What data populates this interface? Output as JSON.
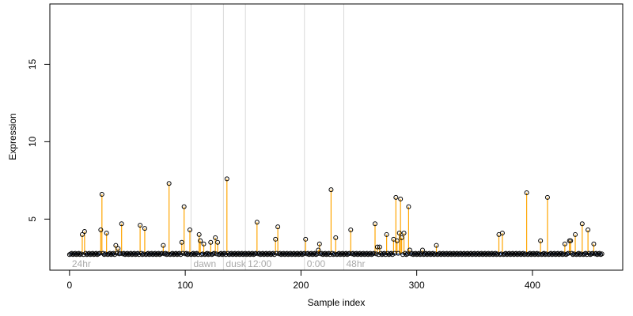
{
  "chart_data": {
    "type": "scatter",
    "title": "",
    "xlabel": "Sample index",
    "ylabel": "Expression",
    "xlim": [
      -17,
      478
    ],
    "ylim": [
      1.7,
      18.9
    ],
    "x_ticks": [
      0,
      100,
      200,
      300,
      400
    ],
    "y_ticks": [
      5,
      10,
      15
    ],
    "grid": false,
    "n_samples": 461,
    "baseline": 2.75,
    "baseline_color": "#6495ED",
    "stem_color": "#FFA500",
    "point_stroke": "#000000",
    "vertical_marker_color": "#d9d9d9",
    "vertical_markers": [
      {
        "x": 0,
        "label": "24hr"
      },
      {
        "x": 105,
        "label": "dawn"
      },
      {
        "x": 133,
        "label": "dusk"
      },
      {
        "x": 152,
        "label": "12:00"
      },
      {
        "x": 203,
        "label": "0:00"
      },
      {
        "x": 237,
        "label": "48hr"
      }
    ],
    "peaks": [
      {
        "x": 11,
        "y": 4.0
      },
      {
        "x": 13,
        "y": 4.2
      },
      {
        "x": 27,
        "y": 4.3
      },
      {
        "x": 28,
        "y": 6.6
      },
      {
        "x": 32,
        "y": 4.1
      },
      {
        "x": 40,
        "y": 3.3
      },
      {
        "x": 42,
        "y": 3.1
      },
      {
        "x": 45,
        "y": 4.7
      },
      {
        "x": 61,
        "y": 4.6
      },
      {
        "x": 65,
        "y": 4.4
      },
      {
        "x": 81,
        "y": 3.3
      },
      {
        "x": 86,
        "y": 7.3
      },
      {
        "x": 97,
        "y": 3.5
      },
      {
        "x": 99,
        "y": 5.8
      },
      {
        "x": 104,
        "y": 4.3
      },
      {
        "x": 112,
        "y": 4.0
      },
      {
        "x": 113,
        "y": 3.6
      },
      {
        "x": 116,
        "y": 3.4
      },
      {
        "x": 122,
        "y": 3.5
      },
      {
        "x": 126,
        "y": 3.8
      },
      {
        "x": 128,
        "y": 3.5
      },
      {
        "x": 136,
        "y": 7.6
      },
      {
        "x": 162,
        "y": 4.8
      },
      {
        "x": 178,
        "y": 3.7
      },
      {
        "x": 180,
        "y": 4.5
      },
      {
        "x": 204,
        "y": 3.7
      },
      {
        "x": 215,
        "y": 3.0
      },
      {
        "x": 216,
        "y": 3.4
      },
      {
        "x": 226,
        "y": 6.9
      },
      {
        "x": 230,
        "y": 3.8
      },
      {
        "x": 243,
        "y": 4.3
      },
      {
        "x": 264,
        "y": 4.7
      },
      {
        "x": 266,
        "y": 3.2
      },
      {
        "x": 268,
        "y": 3.2
      },
      {
        "x": 274,
        "y": 4.0
      },
      {
        "x": 280,
        "y": 3.7
      },
      {
        "x": 282,
        "y": 6.4
      },
      {
        "x": 283,
        "y": 3.6
      },
      {
        "x": 285,
        "y": 4.1
      },
      {
        "x": 286,
        "y": 6.3
      },
      {
        "x": 287,
        "y": 3.8
      },
      {
        "x": 289,
        "y": 4.1
      },
      {
        "x": 293,
        "y": 5.8
      },
      {
        "x": 294,
        "y": 3.0
      },
      {
        "x": 305,
        "y": 3.0
      },
      {
        "x": 317,
        "y": 3.3
      },
      {
        "x": 371,
        "y": 4.0
      },
      {
        "x": 374,
        "y": 4.1
      },
      {
        "x": 395,
        "y": 6.7
      },
      {
        "x": 407,
        "y": 3.6
      },
      {
        "x": 413,
        "y": 6.4
      },
      {
        "x": 428,
        "y": 3.4
      },
      {
        "x": 432,
        "y": 3.6
      },
      {
        "x": 433,
        "y": 3.6
      },
      {
        "x": 437,
        "y": 4.0
      },
      {
        "x": 443,
        "y": 4.7
      },
      {
        "x": 448,
        "y": 4.3
      },
      {
        "x": 453,
        "y": 3.4
      }
    ]
  }
}
